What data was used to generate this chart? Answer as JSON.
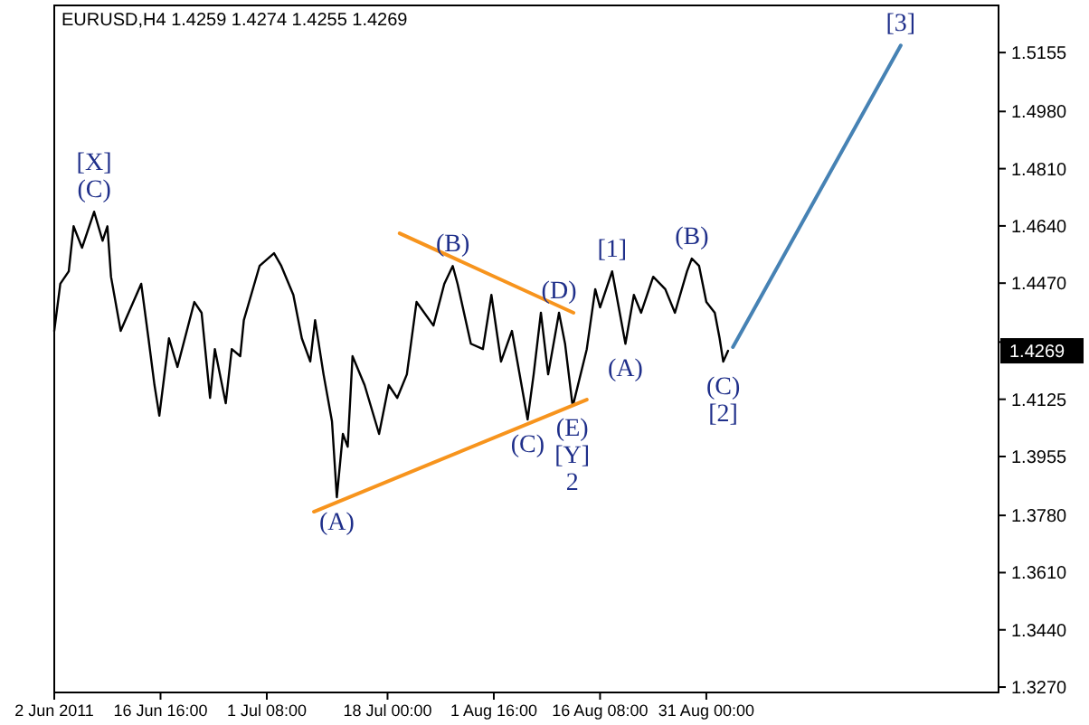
{
  "chart_data": {
    "type": "line",
    "title": "EURUSD,H4  1.4259 1.4274 1.4255 1.4269",
    "xlim": [
      "2011-06-02T00:00",
      "2011-10-10T08:00"
    ],
    "ylim": [
      1.3254,
      1.5295
    ],
    "xticks": [
      {
        "value": "2011-06-02T00:00",
        "label": "2 Jun 2011"
      },
      {
        "value": "2011-06-16T16:00",
        "label": "16 Jun 16:00"
      },
      {
        "value": "2011-07-01T08:00",
        "label": "1 Jul 08:00"
      },
      {
        "value": "2011-07-18T00:00",
        "label": "18 Jul 00:00"
      },
      {
        "value": "2011-08-01T16:00",
        "label": "1 Aug 16:00"
      },
      {
        "value": "2011-08-16T08:00",
        "label": "16 Aug 08:00"
      },
      {
        "value": "2011-08-31T00:00",
        "label": "31 Aug 00:00"
      }
    ],
    "yticks": [
      {
        "value": 1.5155,
        "label": "1.5155"
      },
      {
        "value": 1.498,
        "label": "1.4980"
      },
      {
        "value": 1.481,
        "label": "1.4810"
      },
      {
        "value": 1.464,
        "label": "1.4640"
      },
      {
        "value": 1.447,
        "label": "1.4470"
      },
      {
        "value": 1.4295,
        "label": null
      },
      {
        "value": 1.4125,
        "label": "1.4125"
      },
      {
        "value": 1.3955,
        "label": "1.3955"
      },
      {
        "value": 1.378,
        "label": "1.3780"
      },
      {
        "value": 1.361,
        "label": "1.3610"
      },
      {
        "value": 1.344,
        "label": "1.3440"
      },
      {
        "value": 1.327,
        "label": "1.3270"
      }
    ],
    "grid": false,
    "marker": "none",
    "line_style": "solid",
    "series": [
      {
        "color": "#000000",
        "x": [
          "2011-06-02T00:00",
          "2011-06-02T20:00",
          "2011-06-04T00:00",
          "2011-06-04T16:00",
          "2011-06-05T20:00",
          "2011-06-07T12:00",
          "2011-06-08T16:00",
          "2011-06-09T08:00",
          "2011-06-09T20:00",
          "2011-06-11T04:00",
          "2011-06-14T00:00",
          "2011-06-15T00:00",
          "2011-06-15T20:00",
          "2011-06-16T12:00",
          "2011-06-17T20:00",
          "2011-06-19T00:00",
          "2011-06-21T08:00",
          "2011-06-22T08:00",
          "2011-06-23T12:00",
          "2011-06-24T04:00",
          "2011-06-25T16:00",
          "2011-06-26T12:00",
          "2011-06-27T16:00",
          "2011-06-28T04:00",
          "2011-06-30T08:00",
          "2011-07-02T08:00",
          "2011-07-03T08:00",
          "2011-07-05T00:00",
          "2011-07-06T04:00",
          "2011-07-07T08:00",
          "2011-07-08T00:00",
          "2011-07-09T04:00",
          "2011-07-10T08:00",
          "2011-07-11T00:00",
          "2011-07-11T20:00",
          "2011-07-12T12:00",
          "2011-07-13T04:00",
          "2011-07-14T20:00",
          "2011-07-16T20:00",
          "2011-07-18T04:00",
          "2011-07-19T08:00",
          "2011-07-20T16:00",
          "2011-07-22T00:00",
          "2011-07-24T08:00",
          "2011-07-25T20:00",
          "2011-07-27T00:00",
          "2011-07-27T16:00",
          "2011-07-29T12:00",
          "2011-07-31T04:00",
          "2011-08-01T08:00",
          "2011-08-02T16:00",
          "2011-08-04T04:00",
          "2011-08-06T08:00",
          "2011-08-07T04:00",
          "2011-08-08T04:00",
          "2011-08-09T04:00",
          "2011-08-10T16:00",
          "2011-08-11T12:00",
          "2011-08-12T12:00",
          "2011-08-12T16:00",
          "2011-08-14T12:00",
          "2011-08-15T16:00",
          "2011-08-16T08:00",
          "2011-08-18T00:00",
          "2011-08-19T20:00",
          "2011-08-21T00:00",
          "2011-08-22T00:00",
          "2011-08-23T16:00",
          "2011-08-25T08:00",
          "2011-08-26T16:00",
          "2011-08-28T08:00",
          "2011-08-29T00:00",
          "2011-08-30T00:00",
          "2011-08-31T00:00",
          "2011-09-01T04:00",
          "2011-09-01T20:00",
          "2011-09-02T08:00",
          "2011-09-03T00:00"
        ],
        "values": [
          1.4328,
          1.4468,
          1.4505,
          1.4639,
          1.4575,
          1.4682,
          1.4596,
          1.4639,
          1.4489,
          1.4328,
          1.4468,
          1.4306,
          1.4167,
          1.4076,
          1.4306,
          1.4221,
          1.4414,
          1.4382,
          1.4129,
          1.4274,
          1.4113,
          1.4274,
          1.4253,
          1.436,
          1.4521,
          1.4559,
          1.4521,
          1.4435,
          1.4306,
          1.4237,
          1.436,
          1.4199,
          1.4059,
          1.3834,
          1.4022,
          1.3984,
          1.4253,
          1.4167,
          1.4022,
          1.4167,
          1.4129,
          1.4199,
          1.4414,
          1.4344,
          1.4468,
          1.4521,
          1.4468,
          1.429,
          1.4274,
          1.4435,
          1.4237,
          1.4328,
          1.4065,
          1.4199,
          1.4382,
          1.4199,
          1.4382,
          1.429,
          1.4113,
          1.4113,
          1.4274,
          1.4452,
          1.4398,
          1.4505,
          1.429,
          1.4435,
          1.4382,
          1.4489,
          1.4452,
          1.4382,
          1.4505,
          1.4543,
          1.4521,
          1.4414,
          1.4382,
          1.4306,
          1.4237,
          1.4269
        ]
      },
      {
        "color": "#f7941d",
        "x": [
          "2011-07-19T16:00",
          "2011-08-12T16:00"
        ],
        "values": [
          1.4618,
          1.4382
        ]
      },
      {
        "color": "#f7941d",
        "x": [
          "2011-07-07T20:00",
          "2011-08-14T12:00"
        ],
        "values": [
          1.3791,
          1.4124
        ]
      },
      {
        "color": "#4682b4",
        "x": [
          "2011-09-03T16:00",
          "2011-09-26T20:00"
        ],
        "values": [
          1.428,
          1.5176
        ]
      }
    ],
    "annotations": [
      {
        "text": "(C)",
        "x": "2011-06-07T12:00",
        "y": 1.4682
      },
      {
        "text": "[X]",
        "x": "2011-06-07T12:00",
        "y": 1.4682
      },
      {
        "text": "(B)",
        "x": "2011-07-27T00:00",
        "y": 1.4521
      },
      {
        "text": "(D)",
        "x": "2011-08-10T16:00",
        "y": 1.4382
      },
      {
        "text": "(A)",
        "x": "2011-07-11T00:00",
        "y": 1.3834
      },
      {
        "text": "(C)",
        "x": "2011-08-06T08:00",
        "y": 1.4065
      },
      {
        "text": "(E)",
        "x": "2011-08-12T12:00",
        "y": 1.4113
      },
      {
        "text": "[Y]",
        "x": "2011-08-12T12:00",
        "y": 1.4113
      },
      {
        "text": "2",
        "x": "2011-08-12T12:00",
        "y": 1.4113
      },
      {
        "text": "[1]",
        "x": "2011-08-18T00:00",
        "y": 1.4505
      },
      {
        "text": "(A)",
        "x": "2011-08-19T20:00",
        "y": 1.429
      },
      {
        "text": "(B)",
        "x": "2011-08-29T00:00",
        "y": 1.4543
      },
      {
        "text": "(C)",
        "x": "2011-09-02T08:00",
        "y": 1.4237
      },
      {
        "text": "[2]",
        "x": "2011-09-02T08:00",
        "y": 1.4237
      },
      {
        "text": "[3]",
        "x": "2011-09-26T20:00",
        "y": 1.5176
      },
      "1.4269"
    ]
  }
}
